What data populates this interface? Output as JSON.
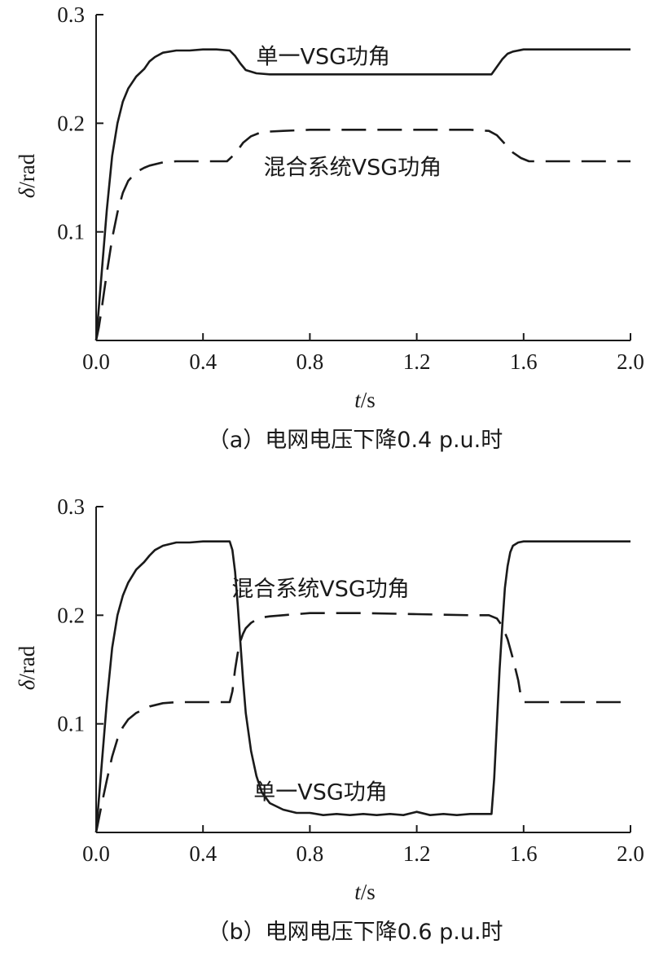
{
  "chart_data": [
    {
      "type": "line",
      "caption": "（a）电网电压下降0.4 p.u.时",
      "xlabel_italic": "t",
      "xlabel_unit": "/s",
      "ylabel_italic": "δ",
      "ylabel_unit": "/rad",
      "xlim": [
        0.0,
        2.0
      ],
      "ylim": [
        0.0,
        0.3
      ],
      "xticks": [
        "0.0",
        "0.4",
        "0.8",
        "1.2",
        "1.6",
        "2.0"
      ],
      "yticks": [
        "0.1",
        "0.2",
        "0.3"
      ],
      "grid": false,
      "series": [
        {
          "name": "单一VSG功角",
          "style": "solid",
          "x": [
            0.0,
            0.02,
            0.04,
            0.06,
            0.08,
            0.1,
            0.12,
            0.15,
            0.18,
            0.2,
            0.22,
            0.25,
            0.3,
            0.35,
            0.4,
            0.45,
            0.5,
            0.52,
            0.54,
            0.56,
            0.6,
            0.65,
            0.7,
            0.8,
            1.0,
            1.2,
            1.4,
            1.48,
            1.5,
            1.52,
            1.54,
            1.56,
            1.6,
            1.7,
            1.8,
            2.0
          ],
          "y": [
            0.0,
            0.06,
            0.12,
            0.17,
            0.2,
            0.22,
            0.232,
            0.243,
            0.25,
            0.257,
            0.261,
            0.265,
            0.267,
            0.267,
            0.268,
            0.268,
            0.267,
            0.262,
            0.255,
            0.249,
            0.246,
            0.245,
            0.245,
            0.245,
            0.245,
            0.245,
            0.245,
            0.245,
            0.252,
            0.259,
            0.264,
            0.266,
            0.268,
            0.268,
            0.268,
            0.268
          ],
          "label_at": [
            0.85,
            0.262
          ]
        },
        {
          "name": "混合系统VSG功角",
          "style": "dashed",
          "x": [
            0.0,
            0.01,
            0.02,
            0.03,
            0.04,
            0.05,
            0.06,
            0.08,
            0.1,
            0.12,
            0.15,
            0.18,
            0.2,
            0.25,
            0.3,
            0.35,
            0.4,
            0.45,
            0.49,
            0.52,
            0.55,
            0.58,
            0.62,
            0.7,
            0.8,
            1.0,
            1.2,
            1.4,
            1.47,
            1.5,
            1.53,
            1.56,
            1.59,
            1.62,
            1.7,
            1.8,
            2.0
          ],
          "y": [
            0.0,
            0.012,
            0.028,
            0.045,
            0.062,
            0.078,
            0.094,
            0.118,
            0.136,
            0.147,
            0.155,
            0.159,
            0.161,
            0.164,
            0.165,
            0.165,
            0.165,
            0.165,
            0.165,
            0.172,
            0.182,
            0.188,
            0.192,
            0.193,
            0.194,
            0.194,
            0.194,
            0.194,
            0.193,
            0.189,
            0.181,
            0.173,
            0.168,
            0.165,
            0.165,
            0.165,
            0.165
          ],
          "label_at": [
            0.96,
            0.16
          ]
        }
      ]
    },
    {
      "type": "line",
      "caption": "（b）电网电压下降0.6 p.u.时",
      "xlabel_italic": "t",
      "xlabel_unit": "/s",
      "ylabel_italic": "δ",
      "ylabel_unit": "/rad",
      "xlim": [
        0.0,
        2.0
      ],
      "ylim": [
        0.0,
        0.3
      ],
      "xticks": [
        "0.0",
        "0.4",
        "0.8",
        "1.2",
        "1.6",
        "2.0"
      ],
      "yticks": [
        "0.1",
        "0.2",
        "0.3"
      ],
      "grid": false,
      "series": [
        {
          "name": "单一VSG功角",
          "style": "solid",
          "x": [
            0.0,
            0.02,
            0.04,
            0.06,
            0.08,
            0.1,
            0.12,
            0.15,
            0.18,
            0.2,
            0.22,
            0.25,
            0.3,
            0.35,
            0.4,
            0.45,
            0.5,
            0.51,
            0.52,
            0.53,
            0.54,
            0.55,
            0.56,
            0.58,
            0.6,
            0.62,
            0.65,
            0.7,
            0.75,
            0.8,
            0.85,
            0.9,
            0.95,
            1.0,
            1.05,
            1.1,
            1.15,
            1.2,
            1.25,
            1.3,
            1.35,
            1.4,
            1.45,
            1.48,
            1.49,
            1.5,
            1.51,
            1.52,
            1.53,
            1.54,
            1.55,
            1.56,
            1.58,
            1.6,
            1.7,
            1.8,
            2.0
          ],
          "y": [
            0.0,
            0.06,
            0.12,
            0.17,
            0.2,
            0.218,
            0.23,
            0.242,
            0.249,
            0.255,
            0.26,
            0.264,
            0.267,
            0.267,
            0.268,
            0.268,
            0.268,
            0.26,
            0.24,
            0.21,
            0.175,
            0.14,
            0.11,
            0.075,
            0.052,
            0.037,
            0.027,
            0.021,
            0.018,
            0.018,
            0.016,
            0.017,
            0.016,
            0.017,
            0.016,
            0.017,
            0.016,
            0.019,
            0.016,
            0.017,
            0.016,
            0.017,
            0.017,
            0.017,
            0.05,
            0.1,
            0.15,
            0.19,
            0.225,
            0.245,
            0.258,
            0.264,
            0.267,
            0.268,
            0.268,
            0.268,
            0.268
          ],
          "label_at": [
            0.84,
            0.038
          ]
        },
        {
          "name": "混合系统VSG功角",
          "style": "dashed",
          "x": [
            0.0,
            0.02,
            0.04,
            0.06,
            0.08,
            0.1,
            0.12,
            0.15,
            0.2,
            0.25,
            0.3,
            0.35,
            0.4,
            0.45,
            0.5,
            0.51,
            0.52,
            0.53,
            0.54,
            0.55,
            0.56,
            0.58,
            0.6,
            0.62,
            0.65,
            0.7,
            0.8,
            1.0,
            1.2,
            1.4,
            1.47,
            1.5,
            1.52,
            1.54,
            1.56,
            1.58,
            1.59,
            1.6,
            1.62,
            1.7,
            1.8,
            2.0
          ],
          "y": [
            0.0,
            0.025,
            0.048,
            0.07,
            0.086,
            0.097,
            0.104,
            0.11,
            0.116,
            0.119,
            0.12,
            0.12,
            0.12,
            0.12,
            0.12,
            0.13,
            0.15,
            0.165,
            0.176,
            0.183,
            0.188,
            0.193,
            0.196,
            0.198,
            0.199,
            0.2,
            0.202,
            0.202,
            0.201,
            0.2,
            0.2,
            0.197,
            0.19,
            0.178,
            0.16,
            0.14,
            0.125,
            0.12,
            0.12,
            0.12,
            0.12,
            0.12
          ],
          "label_at": [
            0.84,
            0.225
          ]
        }
      ]
    }
  ]
}
